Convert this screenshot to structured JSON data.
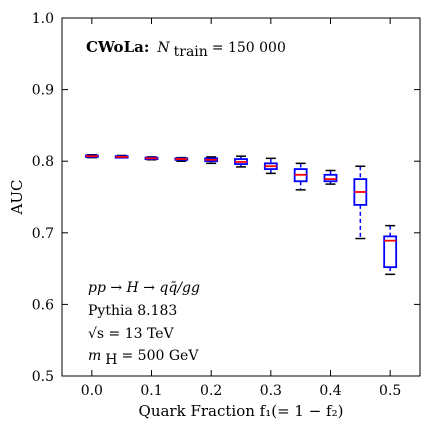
{
  "chart_data": {
    "type": "box",
    "xlabel": "Quark Fraction f₁(= 1 − f₂)",
    "ylabel": "AUC",
    "xlim": [
      -0.05,
      0.55
    ],
    "ylim": [
      0.5,
      1.0
    ],
    "xticks": [
      "0.0",
      "0.1",
      "0.2",
      "0.3",
      "0.4",
      "0.5"
    ],
    "xtick_values": [
      0.0,
      0.1,
      0.2,
      0.3,
      0.4,
      0.5
    ],
    "yticks": [
      "0.5",
      "0.6",
      "0.7",
      "0.8",
      "0.9",
      "1.0"
    ],
    "ytick_values": [
      0.5,
      0.6,
      0.7,
      0.8,
      0.9,
      1.0
    ],
    "box_color": "#0000ff",
    "median_color": "#ff0000",
    "boxes": [
      {
        "x": 0.0,
        "whislo": 0.805,
        "q1": 0.806,
        "med": 0.807,
        "q3": 0.808,
        "whishi": 0.809
      },
      {
        "x": 0.05,
        "whislo": 0.805,
        "q1": 0.806,
        "med": 0.806,
        "q3": 0.807,
        "whishi": 0.808
      },
      {
        "x": 0.1,
        "whislo": 0.802,
        "q1": 0.803,
        "med": 0.804,
        "q3": 0.805,
        "whishi": 0.806
      },
      {
        "x": 0.15,
        "whislo": 0.8,
        "q1": 0.802,
        "med": 0.803,
        "q3": 0.804,
        "whishi": 0.805
      },
      {
        "x": 0.2,
        "whislo": 0.797,
        "q1": 0.8,
        "med": 0.802,
        "q3": 0.804,
        "whishi": 0.806
      },
      {
        "x": 0.25,
        "whislo": 0.792,
        "q1": 0.796,
        "med": 0.799,
        "q3": 0.803,
        "whishi": 0.807
      },
      {
        "x": 0.3,
        "whislo": 0.783,
        "q1": 0.789,
        "med": 0.793,
        "q3": 0.797,
        "whishi": 0.804
      },
      {
        "x": 0.35,
        "whislo": 0.76,
        "q1": 0.772,
        "med": 0.781,
        "q3": 0.789,
        "whishi": 0.797
      },
      {
        "x": 0.4,
        "whislo": 0.768,
        "q1": 0.772,
        "med": 0.775,
        "q3": 0.781,
        "whishi": 0.787
      },
      {
        "x": 0.45,
        "whislo": 0.692,
        "q1": 0.739,
        "med": 0.757,
        "q3": 0.775,
        "whishi": 0.793
      },
      {
        "x": 0.5,
        "whislo": 0.642,
        "q1": 0.652,
        "med": 0.689,
        "q3": 0.695,
        "whishi": 0.71
      }
    ],
    "annotations": {
      "top_bold": "CWoLa:",
      "top_math": "N",
      "top_sub": "train",
      "top_rest": " = 150 000",
      "process": "pp → H → qq̄/gg",
      "generator": "Pythia 8.183",
      "sqrt_s": "√s = 13 TeV",
      "mass": "m",
      "mass_sub": "H",
      "mass_rest": " = 500 GeV"
    }
  }
}
